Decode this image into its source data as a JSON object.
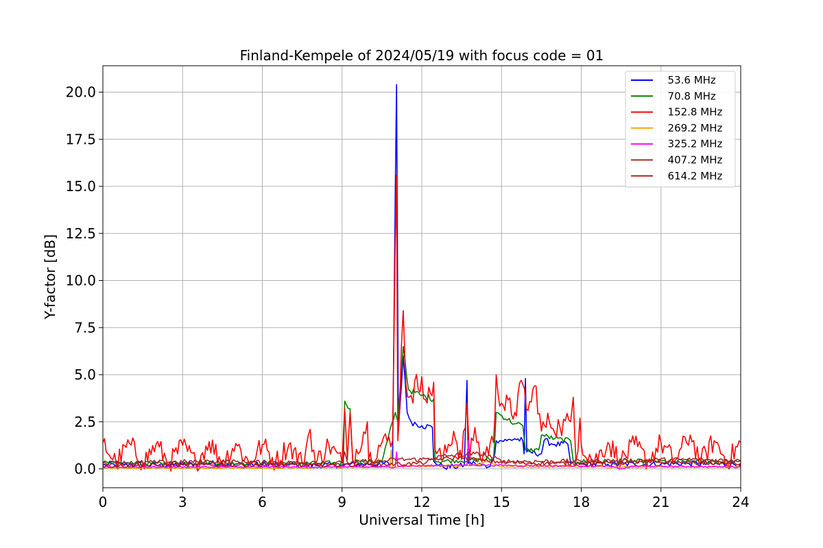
{
  "chart_data": {
    "type": "line",
    "title": "Finland-Kempele of 2024/05/19 with focus code = 01",
    "xlabel": "Universal Time [h]",
    "ylabel": "Y-factor [dB]",
    "xlim": [
      0,
      24
    ],
    "ylim": [
      -1.0,
      21.4
    ],
    "x_ticks": [
      0,
      3,
      6,
      9,
      12,
      15,
      18,
      21,
      24
    ],
    "x_tick_labels": [
      "0",
      "3",
      "6",
      "9",
      "12",
      "15",
      "18",
      "21",
      "24"
    ],
    "y_ticks": [
      0.0,
      2.5,
      5.0,
      7.5,
      10.0,
      12.5,
      15.0,
      17.5,
      20.0
    ],
    "y_tick_labels": [
      "0.0",
      "2.5",
      "5.0",
      "7.5",
      "10.0",
      "12.5",
      "15.0",
      "17.5",
      "20.0"
    ],
    "grid": true,
    "legend_position": "top-right",
    "series": [
      {
        "name": "  53.6 MHz",
        "color": "#0000ff",
        "points": [
          [
            0,
            0.2
          ],
          [
            1,
            0.25
          ],
          [
            2,
            0.2
          ],
          [
            3,
            0.22
          ],
          [
            4,
            0.3
          ],
          [
            5,
            0.25
          ],
          [
            6,
            0.22
          ],
          [
            7,
            0.2
          ],
          [
            8,
            0.2
          ],
          [
            9,
            0.2
          ],
          [
            10,
            0.25
          ],
          [
            10.9,
            0.3
          ],
          [
            11.0,
            14.5
          ],
          [
            11.05,
            20.4
          ],
          [
            11.12,
            2.0
          ],
          [
            11.3,
            6.0
          ],
          [
            11.45,
            3.0
          ],
          [
            11.6,
            2.5
          ],
          [
            12.0,
            2.3
          ],
          [
            12.4,
            2.2
          ],
          [
            12.45,
            0.4
          ],
          [
            12.8,
            0.1
          ],
          [
            13.2,
            0.1
          ],
          [
            13.6,
            0.2
          ],
          [
            13.7,
            4.7
          ],
          [
            13.75,
            0.3
          ],
          [
            14.0,
            0.3
          ],
          [
            14.5,
            0.1
          ],
          [
            14.7,
            0.5
          ],
          [
            14.8,
            1.5
          ],
          [
            15.2,
            1.5
          ],
          [
            15.5,
            1.6
          ],
          [
            15.8,
            1.5
          ],
          [
            15.85,
            0.8
          ],
          [
            15.9,
            4.8
          ],
          [
            15.95,
            0.9
          ],
          [
            16.5,
            0.8
          ],
          [
            16.6,
            1.5
          ],
          [
            17.0,
            1.3
          ],
          [
            17.5,
            1.3
          ],
          [
            17.6,
            0.3
          ],
          [
            18,
            0.25
          ],
          [
            19,
            0.25
          ],
          [
            20,
            0.25
          ],
          [
            21,
            0.25
          ],
          [
            22,
            0.3
          ],
          [
            23,
            0.25
          ],
          [
            24,
            0.25
          ]
        ]
      },
      {
        "name": "  70.8 MHz",
        "color": "#008000",
        "points": [
          [
            0,
            0.3
          ],
          [
            2,
            0.3
          ],
          [
            4,
            0.35
          ],
          [
            6,
            0.3
          ],
          [
            8,
            0.3
          ],
          [
            9.05,
            0.3
          ],
          [
            9.1,
            3.6
          ],
          [
            9.3,
            3.2
          ],
          [
            9.4,
            0.4
          ],
          [
            10.5,
            0.4
          ],
          [
            11.0,
            3.0
          ],
          [
            11.1,
            2.5
          ],
          [
            11.3,
            6.5
          ],
          [
            11.5,
            4.2
          ],
          [
            12.0,
            3.9
          ],
          [
            12.45,
            3.7
          ],
          [
            12.5,
            0.4
          ],
          [
            14.7,
            0.5
          ],
          [
            14.8,
            3.0
          ],
          [
            15.5,
            2.4
          ],
          [
            15.8,
            2.3
          ],
          [
            15.9,
            1.0
          ],
          [
            16.4,
            1.0
          ],
          [
            16.5,
            1.8
          ],
          [
            17.0,
            1.6
          ],
          [
            17.6,
            1.5
          ],
          [
            17.7,
            0.4
          ],
          [
            20,
            0.4
          ],
          [
            24,
            0.4
          ]
        ]
      },
      {
        "name": "  152.8 MHz",
        "color": "#ff0000",
        "points": [
          [
            0,
            1.4
          ],
          [
            0.5,
            0.3
          ],
          [
            1,
            1.35
          ],
          [
            1.5,
            0.3
          ],
          [
            2,
            1.3
          ],
          [
            2.5,
            0.3
          ],
          [
            3,
            1.25
          ],
          [
            3.5,
            0.3
          ],
          [
            4,
            1.45
          ],
          [
            4.5,
            0.35
          ],
          [
            5,
            1.35
          ],
          [
            5.5,
            0.3
          ],
          [
            6,
            1.3
          ],
          [
            6.5,
            0.35
          ],
          [
            7,
            1.3
          ],
          [
            7.5,
            0.3
          ],
          [
            7.8,
            2.1
          ],
          [
            8,
            0.3
          ],
          [
            8.5,
            1.3
          ],
          [
            9.0,
            0.3
          ],
          [
            9.1,
            3.2
          ],
          [
            9.2,
            0.5
          ],
          [
            9.3,
            3.0
          ],
          [
            9.4,
            0.5
          ],
          [
            9.95,
            2.5
          ],
          [
            10.0,
            0.5
          ],
          [
            10.5,
            1.4
          ],
          [
            10.9,
            1.5
          ],
          [
            11.0,
            12.0
          ],
          [
            11.05,
            15.6
          ],
          [
            11.1,
            1.5
          ],
          [
            11.3,
            8.4
          ],
          [
            11.4,
            4.5
          ],
          [
            11.6,
            3.9
          ],
          [
            12.0,
            4.9
          ],
          [
            12.2,
            3.5
          ],
          [
            12.45,
            4.6
          ],
          [
            12.5,
            1.0
          ],
          [
            12.8,
            0.5
          ],
          [
            13.2,
            2.0
          ],
          [
            13.5,
            0.5
          ],
          [
            13.7,
            3.5
          ],
          [
            13.8,
            0.5
          ],
          [
            14.0,
            2.2
          ],
          [
            14.2,
            0.6
          ],
          [
            14.7,
            1.4
          ],
          [
            14.8,
            5.0
          ],
          [
            15.0,
            3.5
          ],
          [
            15.5,
            3.0
          ],
          [
            15.8,
            4.5
          ],
          [
            16.0,
            3.1
          ],
          [
            16.3,
            4.4
          ],
          [
            16.5,
            2.0
          ],
          [
            16.8,
            2.5
          ],
          [
            17.2,
            2.2
          ],
          [
            17.6,
            2.5
          ],
          [
            17.7,
            3.8
          ],
          [
            17.8,
            0.4
          ],
          [
            17.95,
            2.7
          ],
          [
            18.0,
            1.3
          ],
          [
            18.5,
            0.4
          ],
          [
            19,
            1.4
          ],
          [
            19.5,
            0.4
          ],
          [
            20,
            1.3
          ],
          [
            20.5,
            0.4
          ],
          [
            21,
            1.4
          ],
          [
            21.5,
            0.4
          ],
          [
            22.1,
            1.8
          ],
          [
            22.5,
            0.4
          ],
          [
            23,
            1.5
          ],
          [
            23.5,
            0.4
          ],
          [
            24,
            1.4
          ]
        ]
      },
      {
        "name": "  269.2 MHz",
        "color": "#ffa500",
        "points": [
          [
            0,
            0.05
          ],
          [
            6,
            0.05
          ],
          [
            10.8,
            0.1
          ],
          [
            10.85,
            1.0
          ],
          [
            10.9,
            0.1
          ],
          [
            14,
            0.2
          ],
          [
            14.5,
            0.4
          ],
          [
            15,
            0.1
          ],
          [
            24,
            0.1
          ]
        ]
      },
      {
        "name": "  325.2 MHz",
        "color": "#ff00ff",
        "points": [
          [
            0,
            0.1
          ],
          [
            6,
            0.1
          ],
          [
            11.0,
            0.1
          ],
          [
            11.05,
            0.9
          ],
          [
            11.1,
            0.15
          ],
          [
            13.7,
            0.2
          ],
          [
            13.75,
            1.5
          ],
          [
            13.8,
            0.2
          ],
          [
            19,
            0.15
          ],
          [
            19.5,
            0.0
          ],
          [
            20,
            0.15
          ],
          [
            24,
            0.1
          ]
        ]
      },
      {
        "name": "  407.2 MHz",
        "color": "#a52a2a",
        "points": [
          [
            0,
            0.3
          ],
          [
            2,
            0.35
          ],
          [
            4,
            0.4
          ],
          [
            6,
            0.35
          ],
          [
            8,
            0.3
          ],
          [
            9,
            0.3
          ],
          [
            9.1,
            0.9
          ],
          [
            9.2,
            0.35
          ],
          [
            10.5,
            0.4
          ],
          [
            11,
            0.5
          ],
          [
            12,
            0.5
          ],
          [
            12.5,
            0.6
          ],
          [
            13.0,
            0.7
          ],
          [
            14.0,
            0.8
          ],
          [
            14.5,
            0.7
          ],
          [
            15,
            0.4
          ],
          [
            18,
            0.4
          ],
          [
            20,
            0.45
          ],
          [
            22,
            0.5
          ],
          [
            24,
            0.45
          ]
        ]
      },
      {
        "name": "  614.2 MHz",
        "color": "#b22222",
        "points": [
          [
            0,
            0.15
          ],
          [
            3,
            0.2
          ],
          [
            6,
            0.2
          ],
          [
            9,
            0.2
          ],
          [
            11,
            0.25
          ],
          [
            12,
            0.3
          ],
          [
            12.5,
            0.5
          ],
          [
            13.5,
            0.6
          ],
          [
            14.5,
            0.4
          ],
          [
            16,
            0.3
          ],
          [
            18,
            0.3
          ],
          [
            21,
            0.35
          ],
          [
            24,
            0.3
          ]
        ]
      }
    ]
  }
}
